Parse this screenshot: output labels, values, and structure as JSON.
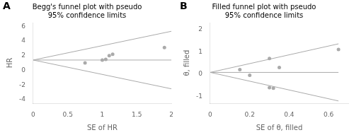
{
  "chart_data": [
    {
      "type": "scatter",
      "title": "Begg's funnel plot with pseudo\n95% confidence limits",
      "xlabel": "SE of HR",
      "ylabel": "HR",
      "xlim": [
        0,
        2
      ],
      "ylim": [
        -4.5,
        6.5
      ],
      "xticks": [
        0,
        0.5,
        1,
        1.5,
        2
      ],
      "yticks": [
        -4,
        -2,
        0,
        2,
        4,
        6
      ],
      "grid": false,
      "annotations": [
        {
          "text": "A"
        }
      ],
      "series": [
        {
          "type": "line",
          "color": "#aaaaaa",
          "x": [
            0,
            2.0
          ],
          "values": [
            1.4,
            5.32
          ]
        },
        {
          "type": "line",
          "color": "#aaaaaa",
          "x": [
            0,
            2.0
          ],
          "values": [
            1.4,
            -2.52
          ]
        },
        {
          "type": "line",
          "color": "#aaaaaa",
          "x": [
            0,
            2.0
          ],
          "values": [
            1.4,
            1.4
          ]
        },
        {
          "type": "scatter",
          "color": "#aaaaaa",
          "x": [
            0.75,
            1.0,
            1.05,
            1.1,
            1.15,
            1.9
          ],
          "values": [
            1.0,
            1.4,
            1.5,
            2.0,
            2.2,
            3.1
          ]
        }
      ]
    },
    {
      "type": "scatter",
      "title": "Filled funnel plot with pseudo\n95% confidence limits",
      "xlabel": "SE of θ, filled",
      "ylabel": "θ, filled",
      "xlim": [
        0,
        0.7
      ],
      "ylim": [
        -1.3,
        2.3
      ],
      "xticks": [
        0,
        0.2,
        0.4,
        0.6
      ],
      "yticks": [
        -1,
        0,
        1,
        2
      ],
      "grid": false,
      "annotations": [
        {
          "text": "B"
        }
      ],
      "series": [
        {
          "type": "line",
          "color": "#aaaaaa",
          "x": [
            0,
            0.65
          ],
          "values": [
            0.08,
            1.354
          ]
        },
        {
          "type": "line",
          "color": "#aaaaaa",
          "x": [
            0,
            0.65
          ],
          "values": [
            0.08,
            -1.194
          ]
        },
        {
          "type": "line",
          "color": "#aaaaaa",
          "x": [
            0,
            0.65
          ],
          "values": [
            0.08,
            0.08
          ]
        },
        {
          "type": "scatter",
          "color": "#aaaaaa",
          "x": [
            0.15,
            0.2,
            0.3,
            0.3,
            0.32,
            0.35,
            0.65
          ],
          "values": [
            0.2,
            -0.05,
            0.7,
            -0.6,
            -0.62,
            0.3,
            1.1
          ]
        }
      ]
    }
  ]
}
